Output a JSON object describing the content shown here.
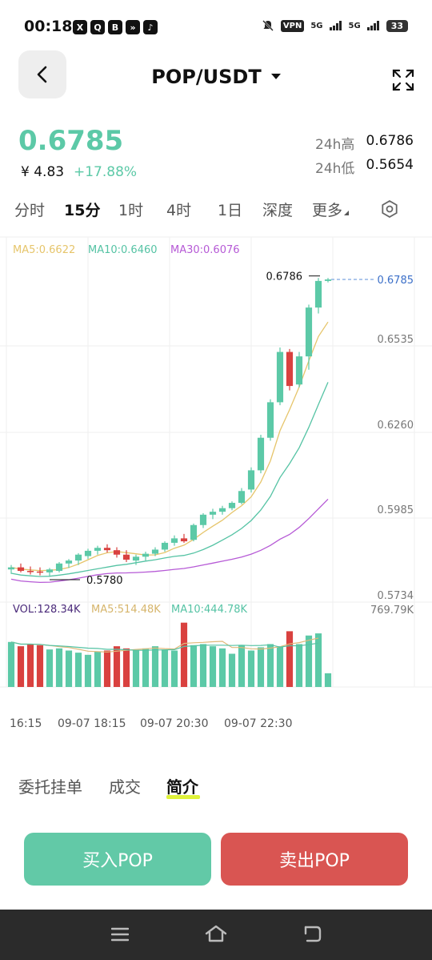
{
  "status": {
    "time": "00:18",
    "apps": [
      "X",
      "Q",
      "B",
      "»",
      "♪"
    ],
    "vpn": "VPN",
    "signal1": "5G",
    "signal2": "5G",
    "battery": "33"
  },
  "header": {
    "pair": "POP/USDT"
  },
  "price": {
    "last": "0.6785",
    "cny": "¥ 4.83",
    "change": "+17.88%",
    "high_label": "24h高",
    "high": "0.6786",
    "low_label": "24h低",
    "low": "0.5654"
  },
  "timeframes": [
    "分时",
    "15分",
    "1时",
    "4时",
    "1日",
    "深度",
    "更多"
  ],
  "active_timeframe": "15分",
  "chart_data": {
    "type": "candlestick",
    "ma_legend": {
      "ma5": "MA5:0.6622",
      "ma10": "MA10:0.6460",
      "ma30": "MA30:0.6076"
    },
    "price_axis": [
      "0.6535",
      "0.6260",
      "0.5985",
      "0.5734"
    ],
    "current_price_tag": "0.6785",
    "high_marker": "0.6786",
    "low_marker": "0.5780",
    "vol_legend": {
      "vol": "VOL:128.34K",
      "ma5": "MA5:514.48K",
      "ma10": "MA10:444.78K"
    },
    "vol_axis_max": "769.79K",
    "time_axis": [
      "16:15",
      "09-07 18:15",
      "09-07 20:30",
      "09-07 22:30"
    ],
    "ylim": [
      0.57,
      0.685
    ],
    "candles": [
      {
        "o": 0.5805,
        "h": 0.582,
        "l": 0.579,
        "c": 0.5812,
        "v": 420
      },
      {
        "o": 0.5812,
        "h": 0.5825,
        "l": 0.5795,
        "c": 0.58,
        "v": 380
      },
      {
        "o": 0.58,
        "h": 0.5815,
        "l": 0.5788,
        "c": 0.5798,
        "v": 400
      },
      {
        "o": 0.5798,
        "h": 0.5812,
        "l": 0.5785,
        "c": 0.5795,
        "v": 390
      },
      {
        "o": 0.5795,
        "h": 0.581,
        "l": 0.578,
        "c": 0.5805,
        "v": 350
      },
      {
        "o": 0.58,
        "h": 0.583,
        "l": 0.5795,
        "c": 0.5825,
        "v": 360
      },
      {
        "o": 0.5825,
        "h": 0.584,
        "l": 0.581,
        "c": 0.5835,
        "v": 340
      },
      {
        "o": 0.5835,
        "h": 0.586,
        "l": 0.582,
        "c": 0.5855,
        "v": 320
      },
      {
        "o": 0.585,
        "h": 0.5875,
        "l": 0.584,
        "c": 0.5868,
        "v": 300
      },
      {
        "o": 0.5868,
        "h": 0.5885,
        "l": 0.5855,
        "c": 0.5878,
        "v": 330
      },
      {
        "o": 0.5878,
        "h": 0.589,
        "l": 0.5862,
        "c": 0.587,
        "v": 340
      },
      {
        "o": 0.587,
        "h": 0.588,
        "l": 0.5845,
        "c": 0.5855,
        "v": 380
      },
      {
        "o": 0.5855,
        "h": 0.587,
        "l": 0.583,
        "c": 0.5838,
        "v": 360
      },
      {
        "o": 0.5835,
        "h": 0.5855,
        "l": 0.582,
        "c": 0.5848,
        "v": 340
      },
      {
        "o": 0.5848,
        "h": 0.5865,
        "l": 0.5835,
        "c": 0.5858,
        "v": 360
      },
      {
        "o": 0.5858,
        "h": 0.588,
        "l": 0.585,
        "c": 0.5872,
        "v": 380
      },
      {
        "o": 0.5872,
        "h": 0.59,
        "l": 0.5865,
        "c": 0.5895,
        "v": 350
      },
      {
        "o": 0.5895,
        "h": 0.592,
        "l": 0.5885,
        "c": 0.591,
        "v": 340
      },
      {
        "o": 0.591,
        "h": 0.5925,
        "l": 0.5895,
        "c": 0.59,
        "v": 600
      },
      {
        "o": 0.5905,
        "h": 0.596,
        "l": 0.59,
        "c": 0.5955,
        "v": 390
      },
      {
        "o": 0.5955,
        "h": 0.5995,
        "l": 0.5945,
        "c": 0.599,
        "v": 400
      },
      {
        "o": 0.599,
        "h": 0.601,
        "l": 0.5975,
        "c": 0.6,
        "v": 380
      },
      {
        "o": 0.6,
        "h": 0.602,
        "l": 0.599,
        "c": 0.6012,
        "v": 360
      },
      {
        "o": 0.6012,
        "h": 0.6035,
        "l": 0.6005,
        "c": 0.603,
        "v": 310
      },
      {
        "o": 0.603,
        "h": 0.608,
        "l": 0.6025,
        "c": 0.607,
        "v": 390
      },
      {
        "o": 0.6075,
        "h": 0.615,
        "l": 0.6065,
        "c": 0.614,
        "v": 340
      },
      {
        "o": 0.614,
        "h": 0.626,
        "l": 0.613,
        "c": 0.625,
        "v": 370
      },
      {
        "o": 0.625,
        "h": 0.638,
        "l": 0.624,
        "c": 0.637,
        "v": 400
      },
      {
        "o": 0.637,
        "h": 0.6555,
        "l": 0.636,
        "c": 0.654,
        "v": 380
      },
      {
        "o": 0.654,
        "h": 0.655,
        "l": 0.641,
        "c": 0.6425,
        "v": 520
      },
      {
        "o": 0.643,
        "h": 0.654,
        "l": 0.642,
        "c": 0.6525,
        "v": 400
      },
      {
        "o": 0.6525,
        "h": 0.67,
        "l": 0.648,
        "c": 0.669,
        "v": 480
      },
      {
        "o": 0.669,
        "h": 0.679,
        "l": 0.667,
        "c": 0.678,
        "v": 500
      },
      {
        "o": 0.678,
        "h": 0.679,
        "l": 0.6775,
        "c": 0.6785,
        "v": 128
      }
    ]
  },
  "bottom_tabs": [
    "委托挂单",
    "成交",
    "简介"
  ],
  "active_bottom_tab": "简介",
  "buy_label": "买入POP",
  "sell_label": "卖出POP",
  "colors": {
    "up": "#5cc9a7",
    "down": "#d9413f",
    "ma5": "#e6c56b",
    "ma10": "#55c3a4",
    "ma30": "#b65ad6"
  }
}
